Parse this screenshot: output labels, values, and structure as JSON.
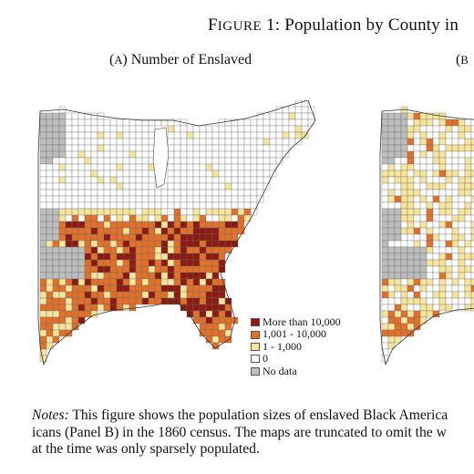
{
  "figure": {
    "title_prefix": "F",
    "title_caps": "IGURE",
    "title_text": " 1: Population by County in"
  },
  "panels": [
    {
      "paren_open": "(",
      "letter": "A",
      "paren_close": ")",
      "title": " Number of Enslaved"
    },
    {
      "paren_open": "(",
      "letter": "B",
      "paren_close": "",
      "title": ""
    }
  ],
  "legend": {
    "items": [
      {
        "label": "More than 10,000",
        "color": "#8b1a10"
      },
      {
        "label": "1,001 - 10,000",
        "color": "#e0702a"
      },
      {
        "label": "1 - 1,000",
        "color": "#f6e59a"
      },
      {
        "label": "0",
        "color": "#ffffff"
      },
      {
        "label": "No data",
        "color": "#bdbdbd"
      }
    ]
  },
  "notes": {
    "label": "Notes:",
    "line1": " This figure shows the population sizes of enslaved Black America",
    "line2": "icans (Panel B) in the 1860 census.  The maps are truncated to omit the w",
    "line3": "at the time was only sparsely populated."
  }
}
